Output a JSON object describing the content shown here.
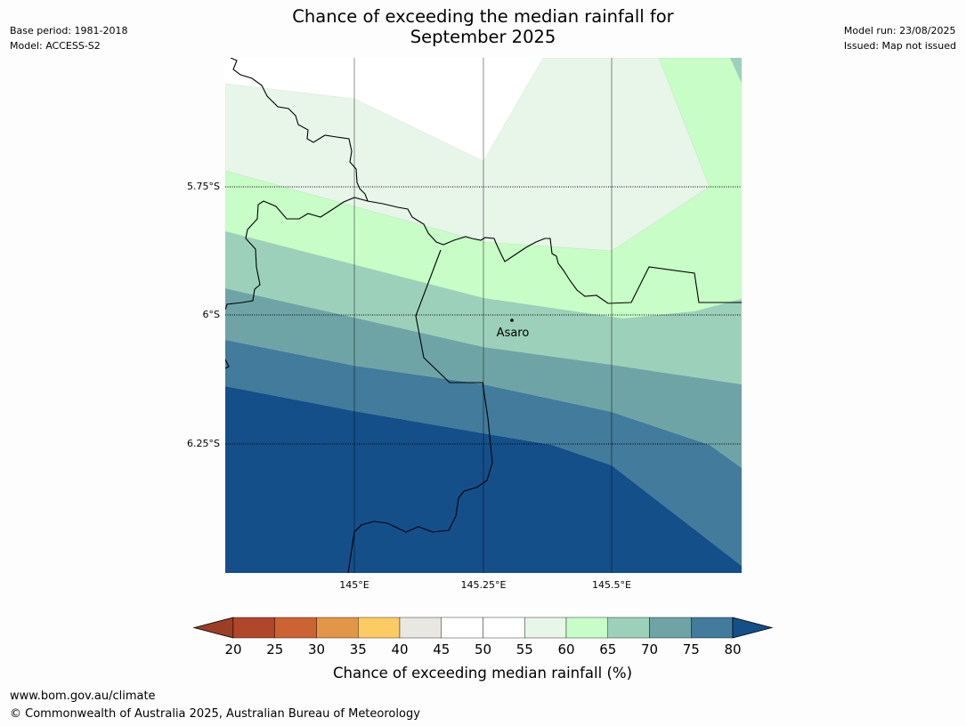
{
  "title_line1": "Chance of exceeding the median rainfall for",
  "title_line2": "September 2025",
  "meta_left": {
    "base_period": "Base period: 1981-2018",
    "model": "Model: ACCESS-S2"
  },
  "meta_right": {
    "model_run": "Model run: 23/08/2025",
    "issued": "Issued: Map not issued"
  },
  "map": {
    "lat_labels": [
      "5.75°S",
      "6°S",
      "6.25°S"
    ],
    "lon_labels": [
      "145°E",
      "145.25°E",
      "145.5°E"
    ],
    "place": {
      "name": "Asaro"
    }
  },
  "colorbar": {
    "ticks": [
      "20",
      "25",
      "30",
      "35",
      "40",
      "45",
      "50",
      "55",
      "60",
      "65",
      "70",
      "75",
      "80"
    ],
    "colors": [
      "#b0462a",
      "#cd6332",
      "#e39548",
      "#fdcb64",
      "#e9e7e2",
      "#ffffff",
      "#ffffff",
      "#e8f5e9",
      "#c8fdc8",
      "#9dd0ba",
      "#6fa4a7",
      "#427b9b"
    ],
    "under_color": "#9c3e26",
    "over_color": "#154f8a",
    "label": "Chance of exceeding median rainfall (%)"
  },
  "footer": {
    "url": "www.bom.gov.au/climate",
    "copyright": "© Commonwealth of Australia 2025, Australian Bureau of Meteorology"
  }
}
